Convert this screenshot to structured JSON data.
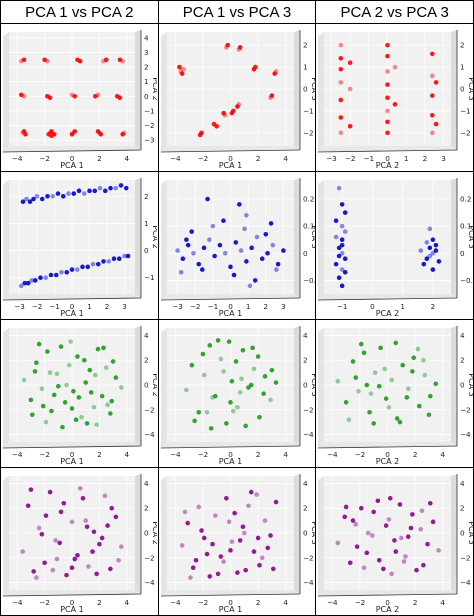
{
  "headers": [
    "PCA 1 vs PCA 2",
    "PCA 1 vs PCA 3",
    "PCA 2 vs PCA 3"
  ],
  "colors": [
    "#ff0000",
    "#0000cc",
    "#1a9b1a",
    "#8b008b"
  ],
  "chart_data": [
    {
      "row": 0,
      "col": 0,
      "type": "scatter",
      "style": "3d-view",
      "xlabel": "PCA 1",
      "ylabel": "PCA 2",
      "xlim": [
        -4.6,
        4.6
      ],
      "ylim": [
        -3.4,
        4.4
      ],
      "xticks": [
        -4,
        -2,
        0,
        2,
        4
      ],
      "yticks": [
        -3,
        -2,
        -1,
        0,
        1,
        2,
        3,
        4
      ],
      "x": [
        -3.6,
        -3.4,
        -3.5,
        -1.6,
        -1.5,
        -1.7,
        0.1,
        0.0,
        0.2,
        2.0,
        2.1,
        1.9,
        3.8,
        3.7,
        -3.7,
        -3.5,
        -1.8,
        -1.6,
        0.0,
        0.2,
        1.7,
        1.9,
        3.3,
        3.5,
        -3.7,
        -3.5,
        -2.0,
        -1.8,
        0.4,
        0.6,
        2.3,
        2.5,
        3.5,
        3.7,
        -1.5,
        -1.3
      ],
      "y": [
        -2.5,
        -2.6,
        -2.4,
        -2.5,
        -2.4,
        -2.6,
        -2.5,
        -2.6,
        -2.4,
        -2.5,
        -2.6,
        -2.4,
        -2.5,
        -2.6,
        0.1,
        0.0,
        0.0,
        -0.1,
        0.1,
        0.0,
        0.0,
        0.1,
        0.0,
        -0.1,
        2.4,
        2.5,
        2.5,
        2.4,
        2.5,
        2.4,
        2.4,
        2.5,
        2.5,
        2.4,
        -2.7,
        -2.6
      ]
    },
    {
      "row": 0,
      "col": 1,
      "type": "scatter",
      "style": "3d-view",
      "xlabel": "PCA 1",
      "ylabel": "PCA 3",
      "xlim": [
        -4.6,
        4.6
      ],
      "ylim": [
        -2.6,
        2.6
      ],
      "xticks": [
        -4,
        -2,
        0,
        2,
        4
      ],
      "yticks": [
        -2,
        -1,
        0,
        1,
        2
      ],
      "x": [
        -3.6,
        -3.5,
        -3.7,
        -3.4,
        -1.2,
        -1.0,
        -0.3,
        -0.2,
        0.5,
        0.6,
        1.7,
        1.8,
        2.9,
        3.0,
        -0.5,
        -0.4,
        -2.2,
        -2.1,
        0.6,
        0.7,
        3.2,
        3.3,
        0.2,
        0.1
      ],
      "y": [
        0.8,
        0.7,
        1.0,
        0.9,
        -1.6,
        -1.7,
        1.9,
        2.0,
        -0.8,
        -0.7,
        0.9,
        1.0,
        -0.4,
        -0.3,
        -1.1,
        -1.2,
        -2.1,
        -2.0,
        1.8,
        1.9,
        0.7,
        0.8,
        -1.0,
        -1.1
      ]
    },
    {
      "row": 0,
      "col": 2,
      "type": "scatter",
      "style": "3d-view",
      "xlabel": "PCA 2",
      "ylabel": "PCA 3",
      "xlim": [
        -3.4,
        3.4
      ],
      "ylim": [
        -2.6,
        2.6
      ],
      "xticks": [
        -3,
        -2,
        -1,
        0,
        1,
        2,
        3
      ],
      "yticks": [
        -2,
        -1,
        0,
        1,
        2
      ],
      "x": [
        -2.5,
        -2.5,
        -2.5,
        -2.5,
        -2.5,
        -2.5,
        -2.5,
        0.0,
        0.0,
        0.0,
        0.0,
        0.0,
        0.0,
        0.0,
        0.0,
        2.4,
        2.4,
        2.4,
        2.4,
        2.4,
        -2.0,
        -2.0,
        -2.0,
        0.4,
        0.4,
        2.6,
        2.6
      ],
      "y": [
        -2.0,
        -1.3,
        -0.5,
        0.3,
        0.9,
        1.4,
        2.0,
        -2.0,
        -1.5,
        -1.0,
        -0.4,
        0.2,
        0.8,
        1.5,
        2.0,
        -2.0,
        -1.2,
        -0.3,
        0.6,
        1.6,
        -1.7,
        0.0,
        1.2,
        -0.7,
        1.0,
        -1.6,
        0.3
      ]
    },
    {
      "row": 1,
      "col": 0,
      "type": "scatter",
      "style": "3d-view",
      "xlabel": "PCA 1",
      "ylabel": "PCA 2",
      "xlim": [
        -3.6,
        3.6
      ],
      "ylim": [
        -1.6,
        2.6
      ],
      "xticks": [
        -3,
        -2,
        -1,
        0,
        1,
        2,
        3
      ],
      "yticks": [
        -1,
        0,
        1,
        2
      ],
      "x": [
        -2.9,
        -2.7,
        -2.5,
        -2.3,
        -2.1,
        -1.8,
        -1.5,
        -1.2,
        -0.9,
        -0.6,
        -0.3,
        0.0,
        0.3,
        0.6,
        0.9,
        1.2,
        1.5,
        1.8,
        2.1,
        2.4,
        2.7,
        3.0,
        3.2,
        -2.8,
        -2.6,
        -2.4,
        -2.2,
        -2.0,
        -1.7,
        -1.4,
        -1.1,
        -0.8,
        -0.5,
        -0.2,
        0.1,
        0.4,
        0.7,
        1.0,
        1.3,
        1.6,
        1.9,
        2.2,
        2.5,
        2.8,
        3.1
      ],
      "y": [
        -1.3,
        -1.2,
        -1.2,
        -1.1,
        -1.1,
        -1.0,
        -1.0,
        -0.9,
        -0.9,
        -0.8,
        -0.8,
        -0.7,
        -0.7,
        -0.6,
        -0.6,
        -0.5,
        -0.5,
        -0.4,
        -0.4,
        -0.3,
        -0.3,
        -0.2,
        -0.2,
        1.8,
        1.9,
        1.8,
        1.9,
        2.0,
        1.9,
        2.0,
        2.0,
        2.1,
        2.0,
        2.1,
        2.1,
        2.2,
        2.1,
        2.2,
        2.2,
        2.3,
        2.2,
        2.3,
        2.3,
        2.4,
        2.3
      ]
    },
    {
      "row": 1,
      "col": 1,
      "type": "scatter",
      "style": "3d-view",
      "xlabel": "PCA 1",
      "ylabel": "PCA 3",
      "xlim": [
        -3.6,
        3.6
      ],
      "ylim": [
        -0.15,
        0.27
      ],
      "xticks": [
        -3,
        -2,
        -1,
        0,
        1,
        2,
        3
      ],
      "yticks": [
        -0.1,
        0.0,
        0.1,
        0.2
      ],
      "x": [
        -3.0,
        -2.7,
        -2.4,
        -2.1,
        -1.8,
        -1.5,
        -1.2,
        -0.9,
        -0.6,
        -0.3,
        0.0,
        0.3,
        0.6,
        0.9,
        1.2,
        1.5,
        1.8,
        2.1,
        2.4,
        2.7,
        3.0,
        -2.8,
        -2.2,
        -1.6,
        -1.0,
        -0.4,
        0.2,
        0.8,
        1.4,
        2.0,
        2.6,
        -1.3,
        0.5,
        1.1,
        2.3,
        -2.5,
        0.9
      ],
      "y": [
        0.01,
        -0.02,
        0.03,
        0.0,
        -0.04,
        0.02,
        0.05,
        -0.01,
        0.03,
        0.0,
        -0.05,
        0.04,
        0.01,
        -0.03,
        0.02,
        0.06,
        -0.02,
        0.0,
        0.03,
        -0.04,
        0.01,
        -0.07,
        0.08,
        -0.06,
        0.1,
        0.12,
        -0.08,
        0.09,
        -0.1,
        0.07,
        -0.06,
        0.2,
        0.18,
        -0.12,
        0.11,
        0.05,
        0.14
      ]
    },
    {
      "row": 1,
      "col": 2,
      "type": "scatter",
      "style": "3d-view",
      "xlabel": "PCA 2",
      "ylabel": "PCA 3",
      "xlim": [
        -1.6,
        2.6
      ],
      "ylim": [
        -0.15,
        0.27
      ],
      "xticks": [
        -1,
        0,
        1,
        2
      ],
      "yticks": [
        -0.1,
        0.0,
        0.1,
        0.2
      ],
      "x": [
        -1.1,
        -1.0,
        -1.2,
        -0.9,
        -1.0,
        -1.1,
        -1.0,
        -0.9,
        -1.2,
        -1.0,
        -1.1,
        -0.9,
        -1.0,
        -1.1,
        -1.0,
        -1.2,
        -0.9,
        -1.0,
        1.6,
        1.8,
        1.9,
        2.0,
        2.1,
        1.7,
        1.9,
        2.0,
        2.2,
        1.8,
        2.0,
        2.1,
        1.9
      ],
      "y": [
        0.24,
        0.18,
        0.12,
        0.08,
        0.05,
        0.02,
        0.0,
        -0.02,
        -0.04,
        -0.06,
        -0.09,
        0.15,
        0.1,
        -0.01,
        0.03,
        0.06,
        -0.07,
        -0.12,
        0.01,
        -0.02,
        0.02,
        0.0,
        0.03,
        -0.04,
        -0.01,
        0.05,
        -0.03,
        0.04,
        -0.06,
        0.01,
        0.09
      ]
    },
    {
      "row": 2,
      "col": 0,
      "type": "scatter",
      "style": "3d-view",
      "xlabel": "PCA 1",
      "ylabel": "PCA 2",
      "xlim": [
        -4.6,
        4.6
      ],
      "ylim": [
        -4.6,
        4.6
      ],
      "xticks": [
        -4,
        -2,
        0,
        2,
        4
      ],
      "yticks": [
        -4,
        -2,
        0,
        2,
        4
      ],
      "x": [
        -3.5,
        -3.0,
        -2.6,
        -2.2,
        -1.8,
        -1.5,
        -1.1,
        -0.8,
        -0.5,
        -0.2,
        0.1,
        0.4,
        0.7,
        1.0,
        1.3,
        1.6,
        1.9,
        2.2,
        2.5,
        2.8,
        3.2,
        3.6,
        -2.9,
        -2.4,
        -1.9,
        -1.3,
        -0.7,
        -0.1,
        0.5,
        1.1,
        1.7,
        2.3,
        2.9,
        -1.6,
        0.0,
        1.4,
        -0.4,
        0.9,
        -2.7,
        2.6,
        -1.0,
        0.3,
        1.8,
        -2.1,
        3.0
      ],
      "y": [
        0.4,
        -1.2,
        1.8,
        -0.3,
        2.7,
        -2.1,
        0.9,
        3.1,
        -1.4,
        1.6,
        -0.5,
        2.3,
        -2.6,
        0.2,
        1.2,
        -1.8,
        2.9,
        -0.9,
        1.4,
        -2.3,
        0.6,
        -0.2,
        -2.4,
        3.3,
        -3.0,
        -0.8,
        -3.4,
        3.5,
        -1.0,
        -3.1,
        0.8,
        3.0,
        -1.3,
        1.0,
        -1.9,
        -0.6,
        0.0,
        2.0,
        1.1,
        -1.6,
        -0.1,
        -2.8,
        -3.2,
        -1.7,
        1.9
      ]
    },
    {
      "row": 2,
      "col": 1,
      "type": "scatter",
      "style": "3d-view",
      "xlabel": "PCA 1",
      "ylabel": "PCA 3",
      "xlim": [
        -4.6,
        4.6
      ],
      "ylim": [
        -4.6,
        4.6
      ],
      "xticks": [
        -4,
        -2,
        0,
        2,
        4
      ],
      "yticks": [
        -4,
        -2,
        0,
        2,
        4
      ],
      "x": [
        -3.2,
        -2.8,
        -2.3,
        -1.9,
        -1.5,
        -1.1,
        -0.7,
        -0.3,
        0.1,
        0.5,
        0.9,
        1.3,
        1.7,
        2.1,
        2.5,
        2.9,
        3.3,
        -2.6,
        -1.7,
        -0.9,
        0.0,
        0.8,
        1.6,
        2.4,
        -1.3,
        0.4,
        1.1,
        -0.5,
        2.0,
        -2.0,
        0.2,
        1.5,
        -0.1,
        0.7,
        -1.4,
        3.0
      ],
      "y": [
        -0.4,
        1.6,
        -2.2,
        0.8,
        3.2,
        -0.9,
        2.1,
        -3.1,
        0.3,
        -1.8,
        2.8,
        -0.2,
        1.3,
        -2.6,
        0.7,
        -1.2,
        0.2,
        -2.9,
        -2.2,
        3.6,
        -1.4,
        0.5,
        3.0,
        -0.7,
        -1.0,
        1.9,
        -3.3,
        1.1,
        2.3,
        2.5,
        -2.1,
        0.0,
        3.5,
        -0.6,
        -3.5,
        1.2
      ]
    },
    {
      "row": 2,
      "col": 2,
      "type": "scatter",
      "style": "3d-view",
      "xlabel": "PCA 2",
      "ylabel": "PCA 3",
      "xlim": [
        -4.6,
        4.6
      ],
      "ylim": [
        -4.6,
        4.6
      ],
      "xticks": [
        -4,
        -2,
        0,
        2,
        4
      ],
      "yticks": [
        -4,
        -2,
        0,
        2,
        4
      ],
      "x": [
        -3.6,
        -3.0,
        -2.5,
        -2.1,
        -1.7,
        -1.3,
        -0.9,
        -0.5,
        -0.1,
        0.3,
        0.7,
        1.1,
        1.5,
        1.9,
        2.3,
        2.7,
        3.1,
        3.5,
        -2.8,
        -1.9,
        -1.0,
        -0.2,
        0.6,
        1.4,
        2.2,
        3.0,
        -1.5,
        0.1,
        1.8,
        -0.6,
        2.6,
        -2.3,
        0.9,
        -1.2
      ],
      "y": [
        0.3,
        -1.4,
        1.9,
        -0.5,
        2.6,
        -2.2,
        1.0,
        3.0,
        -1.1,
        0.4,
        -2.7,
        1.6,
        -0.3,
        2.2,
        -1.7,
        0.8,
        -0.9,
        0.1,
        -2.8,
        3.3,
        -3.1,
        1.3,
        3.4,
        -1.0,
        2.9,
        -2.4,
        0.0,
        -1.8,
        1.1,
        -0.1,
        2.0,
        0.6,
        -3.0,
        -0.7
      ]
    },
    {
      "row": 3,
      "col": 0,
      "type": "scatter",
      "style": "3d-view",
      "xlabel": "PCA 1",
      "ylabel": "PCA 2",
      "xlim": [
        -4.6,
        4.6
      ],
      "ylim": [
        -4.6,
        4.6
      ],
      "xticks": [
        -4,
        -2,
        0,
        2,
        4
      ],
      "yticks": [
        -4,
        -2,
        0,
        2,
        4
      ],
      "x": [
        -3.6,
        -3.2,
        -2.8,
        -2.4,
        -2.0,
        -1.6,
        -1.2,
        -0.8,
        -0.4,
        0.0,
        0.4,
        0.8,
        1.2,
        1.6,
        2.0,
        2.4,
        2.8,
        3.2,
        3.6,
        -3.0,
        -2.2,
        -1.4,
        -0.6,
        0.2,
        1.0,
        1.8,
        2.6,
        3.4,
        -1.9,
        -0.9,
        0.6,
        1.5,
        2.9,
        -2.6,
        0.0,
        1.1,
        -1.1,
        2.2
      ],
      "y": [
        -1.5,
        2.2,
        -3.1,
        0.4,
        -2.4,
        3.3,
        -0.6,
        1.7,
        -3.4,
        0.9,
        -1.8,
        2.8,
        -2.7,
        0.1,
        -0.9,
        3.0,
        -2.9,
        1.3,
        -1.1,
        3.5,
        -0.1,
        -3.0,
        2.4,
        -2.1,
        1.0,
        -3.3,
        0.6,
        -2.2,
        1.4,
        -0.8,
        3.6,
        -1.5,
        2.0,
        -3.6,
        -2.8,
        0.5,
        -2.1,
        -0.4
      ]
    },
    {
      "row": 3,
      "col": 1,
      "type": "scatter",
      "style": "3d-view",
      "xlabel": "PCA 1",
      "ylabel": "PCA 3",
      "xlim": [
        -4.6,
        4.6
      ],
      "ylim": [
        -4.6,
        4.6
      ],
      "xticks": [
        -4,
        -2,
        0,
        2,
        4
      ],
      "yticks": [
        -4,
        -2,
        0,
        2,
        4
      ],
      "x": [
        -3.5,
        -3.1,
        -2.7,
        -2.3,
        -1.9,
        -1.5,
        -1.1,
        -0.7,
        -0.3,
        0.1,
        0.5,
        0.9,
        1.3,
        1.7,
        2.1,
        2.5,
        2.9,
        3.3,
        -2.9,
        -2.1,
        -1.3,
        -0.5,
        0.3,
        1.1,
        1.9,
        2.7,
        -1.7,
        -0.1,
        0.7,
        1.5,
        2.3,
        -2.5,
        0.0,
        1.0,
        -0.9,
        3.1,
        -3.3,
        2.0
      ],
      "y": [
        -1.0,
        0.8,
        -2.8,
        2.1,
        -0.4,
        -3.5,
        1.4,
        -1.9,
        2.8,
        -0.7,
        -3.2,
        0.5,
        2.2,
        -1.5,
        -2.6,
        1.0,
        -0.2,
        2.5,
        -3.6,
        0.2,
        -0.9,
        -2.3,
        1.6,
        -3.0,
        3.1,
        -1.2,
        -1.7,
        0.9,
        -0.6,
        3.3,
        -2.0,
        -2.2,
        -1.4,
        0.0,
        -3.3,
        -2.9,
        1.7,
        -0.4
      ]
    },
    {
      "row": 3,
      "col": 2,
      "type": "scatter",
      "style": "3d-view",
      "xlabel": "PCA 2",
      "ylabel": "PCA 3",
      "xlim": [
        -4.6,
        4.6
      ],
      "ylim": [
        -4.6,
        4.6
      ],
      "xticks": [
        -4,
        -2,
        0,
        2,
        4
      ],
      "yticks": [
        -4,
        -2,
        0,
        2,
        4
      ],
      "x": [
        -3.6,
        -3.1,
        -2.7,
        -2.3,
        -1.9,
        -1.5,
        -1.1,
        -0.7,
        -0.3,
        0.1,
        0.5,
        0.9,
        1.3,
        1.7,
        2.1,
        2.5,
        2.9,
        3.3,
        3.7,
        -3.0,
        -2.2,
        -1.4,
        -0.6,
        0.2,
        1.0,
        1.8,
        2.6,
        -1.7,
        0.6,
        1.5,
        2.4,
        -2.5,
        -0.1,
        1.2,
        3.1,
        -1.0,
        0.3
      ],
      "y": [
        -0.8,
        1.3,
        -2.4,
        0.7,
        2.0,
        -1.6,
        -0.2,
        2.6,
        -2.9,
        1.1,
        -0.6,
        2.3,
        -1.9,
        0.4,
        -3.0,
        1.8,
        -0.9,
        0.9,
        -1.4,
        2.1,
        -1.1,
        0.0,
        -2.2,
        2.8,
        -0.4,
        1.5,
        -2.6,
        -2.8,
        -1.5,
        -0.3,
        0.3,
        1.0,
        0.6,
        -2.3,
        2.4,
        1.7,
        -3.3
      ]
    }
  ]
}
